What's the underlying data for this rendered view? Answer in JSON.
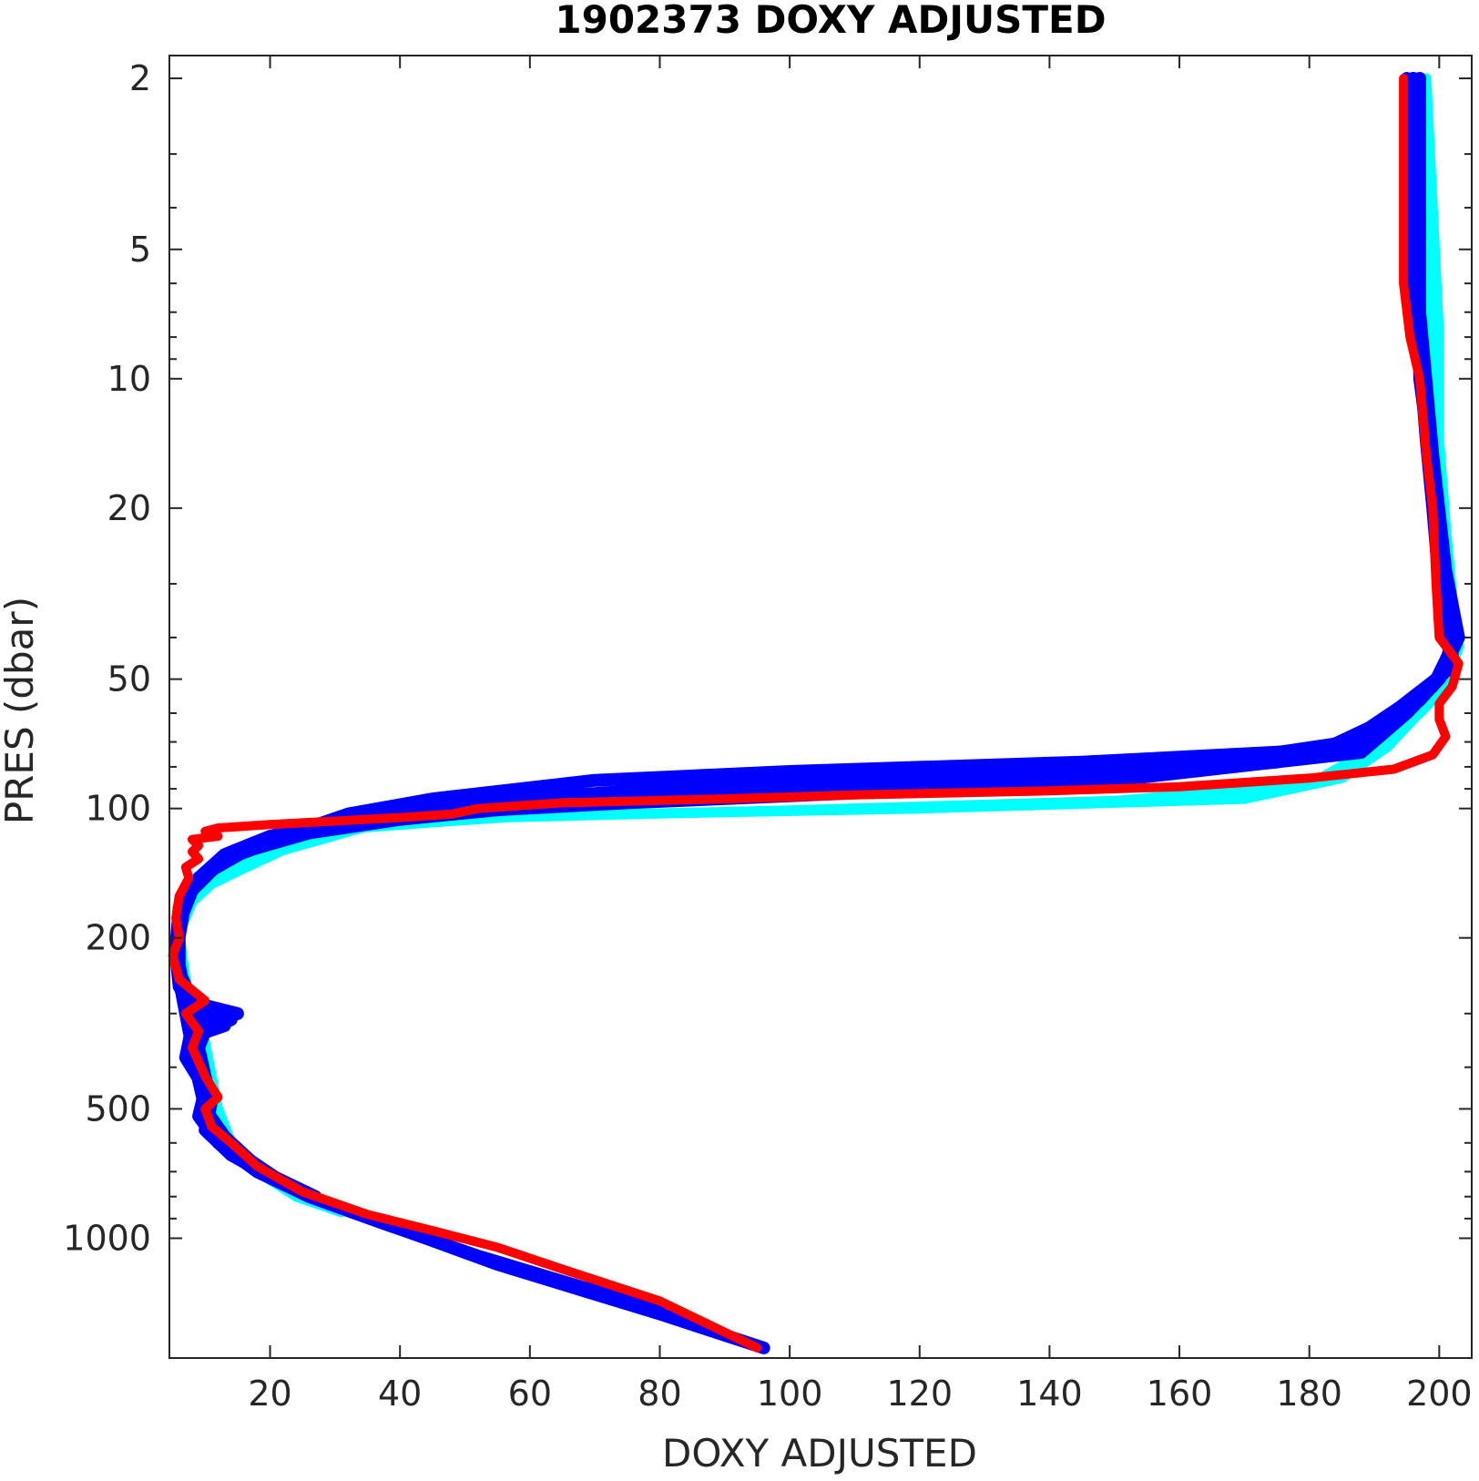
{
  "chart_data": {
    "type": "line",
    "title": "1902373  DOXY ADJUSTED",
    "xlabel": "DOXY ADJUSTED",
    "ylabel": "PRES (dbar)",
    "xlim": [
      4.5,
      205
    ],
    "ylim": [
      1.77,
      1900
    ],
    "yscale": "log",
    "yreverse": true,
    "grid": false,
    "xticks": [
      20,
      40,
      60,
      80,
      100,
      120,
      140,
      160,
      180,
      200
    ],
    "yticks": [
      2,
      5,
      10,
      20,
      50,
      100,
      200,
      500,
      1000
    ],
    "colors": {
      "cyan": "#00ffff",
      "blue": "#0000ff",
      "red": "#ff0000",
      "axis": "#262626"
    },
    "series": [
      {
        "color": "cyan",
        "profiles": [
          [
            [
              198,
              2
            ],
            [
              199,
              4
            ],
            [
              200,
              8
            ],
            [
              200,
              14
            ],
            [
              201,
              22
            ],
            [
              202,
              32
            ],
            [
              203,
              42
            ],
            [
              201,
              52
            ],
            [
              196,
              62
            ],
            [
              192,
              72
            ],
            [
              185,
              85
            ],
            [
              170,
              95
            ],
            [
              120,
              100
            ],
            [
              60,
              104
            ],
            [
              35,
              110
            ],
            [
              22,
              125
            ],
            [
              15,
              140
            ],
            [
              9,
              155
            ],
            [
              7,
              175
            ],
            [
              6,
              200
            ],
            [
              6.5,
              240
            ],
            [
              8,
              290
            ],
            [
              10,
              350
            ],
            [
              11,
              420
            ],
            [
              12,
              500
            ],
            [
              14,
              600
            ],
            [
              18,
              700
            ],
            [
              24,
              800
            ],
            [
              31,
              870
            ]
          ],
          [
            [
              197,
              2
            ],
            [
              198,
              5
            ],
            [
              199,
              10
            ],
            [
              200,
              20
            ],
            [
              201,
              30
            ],
            [
              203,
              40
            ],
            [
              202,
              50
            ],
            [
              197,
              60
            ],
            [
              190,
              72
            ],
            [
              180,
              88
            ],
            [
              150,
              96
            ],
            [
              100,
              101
            ],
            [
              55,
              105
            ],
            [
              30,
              112
            ],
            [
              18,
              128
            ],
            [
              12,
              145
            ],
            [
              8,
              165
            ],
            [
              6,
              195
            ],
            [
              7,
              250
            ],
            [
              9,
              330
            ],
            [
              10,
              420
            ],
            [
              11,
              520
            ],
            [
              15,
              620
            ],
            [
              20,
              720
            ],
            [
              28,
              820
            ]
          ]
        ]
      },
      {
        "color": "blue",
        "profiles": [
          [
            [
              196,
              2
            ],
            [
              196,
              5
            ],
            [
              197,
              9
            ],
            [
              198,
              14
            ],
            [
              199,
              20
            ],
            [
              200,
              30
            ],
            [
              202,
              42
            ],
            [
              199,
              52
            ],
            [
              192,
              62
            ],
            [
              182,
              73
            ],
            [
              145,
              78
            ],
            [
              100,
              82
            ],
            [
              70,
              86
            ],
            [
              45,
              95
            ],
            [
              32,
              103
            ],
            [
              25,
              112
            ],
            [
              20,
              120
            ],
            [
              14,
              130
            ],
            [
              9,
              145
            ],
            [
              7,
              165
            ],
            [
              6,
              190
            ],
            [
              5.5,
              220
            ],
            [
              6,
              260
            ],
            [
              8,
              290
            ],
            [
              14,
              310
            ],
            [
              10,
              330
            ],
            [
              9,
              360
            ],
            [
              10,
              420
            ],
            [
              11,
              480
            ],
            [
              10,
              560
            ],
            [
              14,
              640
            ],
            [
              20,
              720
            ],
            [
              28,
              820
            ],
            [
              40,
              950
            ],
            [
              55,
              1150
            ],
            [
              80,
              1500
            ],
            [
              96,
              1800
            ]
          ],
          [
            [
              195,
              2
            ],
            [
              196,
              6
            ],
            [
              198,
              12
            ],
            [
              200,
              25
            ],
            [
              202,
              38
            ],
            [
              201,
              48
            ],
            [
              194,
              58
            ],
            [
              186,
              70
            ],
            [
              160,
              80
            ],
            [
              120,
              85
            ],
            [
              80,
              90
            ],
            [
              50,
              97
            ],
            [
              35,
              105
            ],
            [
              20,
              118
            ],
            [
              12,
              135
            ],
            [
              8,
              155
            ],
            [
              6,
              185
            ],
            [
              6,
              230
            ],
            [
              7,
              280
            ],
            [
              15,
              300
            ],
            [
              8,
              320
            ],
            [
              7,
              380
            ],
            [
              10,
              450
            ],
            [
              9,
              520
            ],
            [
              12,
              600
            ],
            [
              18,
              700
            ],
            [
              26,
              800
            ],
            [
              38,
              930
            ],
            [
              52,
              1100
            ],
            [
              68,
              1300
            ],
            [
              80,
              1450
            ]
          ],
          [
            [
              197,
              2
            ],
            [
              197,
              7
            ],
            [
              199,
              15
            ],
            [
              201,
              28
            ],
            [
              203,
              40
            ],
            [
              200,
              50
            ],
            [
              195,
              60
            ],
            [
              188,
              74
            ],
            [
              150,
              86
            ],
            [
              110,
              92
            ],
            [
              75,
              97
            ],
            [
              48,
              102
            ],
            [
              30,
              108
            ],
            [
              20,
              116
            ],
            [
              13,
              128
            ],
            [
              9,
              145
            ],
            [
              6,
              170
            ],
            [
              5.5,
              210
            ],
            [
              6,
              250
            ],
            [
              7,
              300
            ],
            [
              8,
              360
            ],
            [
              9,
              430
            ],
            [
              10,
              500
            ],
            [
              13,
              580
            ],
            [
              17,
              660
            ],
            [
              23,
              760
            ]
          ],
          [
            [
              196,
              2
            ],
            [
              197,
              10
            ],
            [
              200,
              22
            ],
            [
              202,
              36
            ],
            [
              202,
              46
            ],
            [
              197,
              56
            ],
            [
              190,
              68
            ],
            [
              175,
              78
            ],
            [
              130,
              88
            ],
            [
              90,
              94
            ],
            [
              60,
              99
            ],
            [
              40,
              106
            ],
            [
              26,
              114
            ],
            [
              16,
              126
            ],
            [
              10,
              142
            ],
            [
              7,
              162
            ],
            [
              6,
              200
            ],
            [
              6,
              240
            ],
            [
              9,
              300
            ],
            [
              13,
              320
            ],
            [
              8,
              340
            ],
            [
              9,
              400
            ],
            [
              10,
              470
            ],
            [
              11,
              540
            ],
            [
              14,
              620
            ],
            [
              19,
              700
            ],
            [
              27,
              800
            ]
          ]
        ]
      },
      {
        "color": "red",
        "profiles": [
          [
            [
              194.5,
              2
            ],
            [
              194.5,
              4
            ],
            [
              194.5,
              6
            ],
            [
              195.5,
              8
            ],
            [
              197,
              10
            ],
            [
              198,
              15
            ],
            [
              199,
              20
            ],
            [
              199.5,
              30
            ],
            [
              200,
              40
            ],
            [
              203,
              46
            ],
            [
              202,
              52
            ],
            [
              200,
              57
            ],
            [
              200,
              62
            ],
            [
              201,
              68
            ],
            [
              199,
              75
            ],
            [
              193,
              81
            ],
            [
              180,
              85
            ],
            [
              160,
              89
            ],
            [
              140,
              91
            ],
            [
              110,
              93
            ],
            [
              90,
              95
            ],
            [
              65,
              97
            ],
            [
              52,
              100
            ],
            [
              48,
              103
            ],
            [
              40,
              105
            ],
            [
              30,
              107
            ],
            [
              20,
              109
            ],
            [
              12,
              111
            ],
            [
              10,
              113
            ],
            [
              12,
              116
            ],
            [
              8,
              118
            ],
            [
              9,
              122
            ],
            [
              8,
              126
            ],
            [
              9,
              131
            ],
            [
              7,
              137
            ],
            [
              7.5,
              145
            ],
            [
              6,
              160
            ],
            [
              5.5,
              180
            ],
            [
              6,
              200
            ],
            [
              5,
              220
            ],
            [
              6,
              250
            ],
            [
              10,
              280
            ],
            [
              7,
              300
            ],
            [
              9,
              330
            ],
            [
              8,
              360
            ],
            [
              10,
              420
            ],
            [
              12,
              470
            ],
            [
              10,
              500
            ],
            [
              11,
              550
            ],
            [
              14,
              600
            ],
            [
              18,
              680
            ],
            [
              25,
              780
            ],
            [
              35,
              880
            ],
            [
              45,
              960
            ],
            [
              55,
              1050
            ],
            [
              65,
              1180
            ],
            [
              80,
              1400
            ],
            [
              95,
              1800
            ]
          ]
        ]
      }
    ]
  }
}
